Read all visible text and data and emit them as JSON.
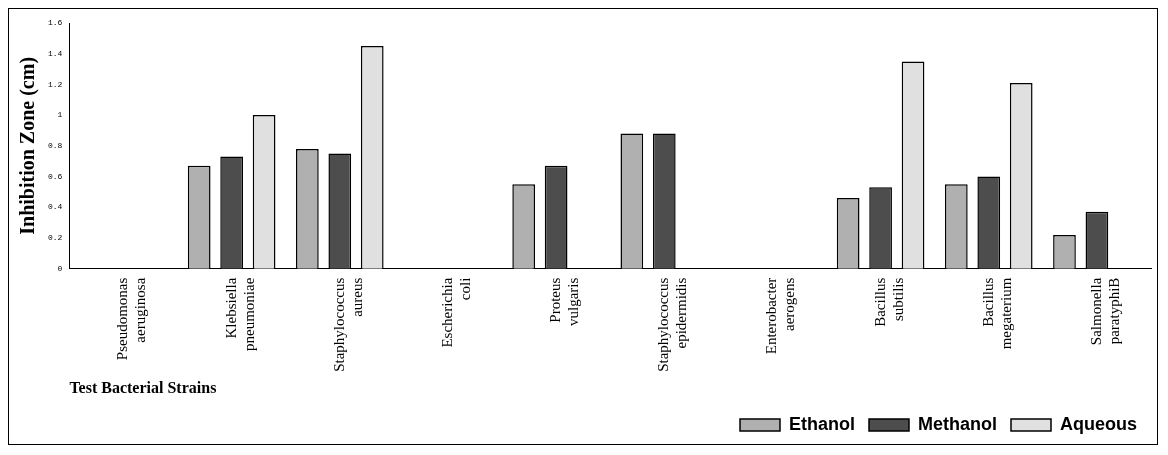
{
  "chart_data": {
    "type": "bar",
    "xlabel": "Test Bacterial Strains",
    "ylabel": "Inhibition Zone (cm)",
    "categories": [
      "Pseudomonas aeruginosa",
      "Klebsiella pneumoniae",
      "Staphylococcus aureus",
      "Escherichia coli",
      "Proteus vulgaris",
      "Staphylococcus epidermidis",
      "Enterobacter aerogens",
      "Bacillus subtilis",
      "Bacillus megaterium",
      "Salmonella paratyphiB"
    ],
    "series": [
      {
        "name": "Ethanol",
        "color": "#b0b0b0",
        "values": [
          0,
          0.67,
          0.78,
          0,
          0.55,
          0.88,
          0,
          0.46,
          0.55,
          0.22
        ]
      },
      {
        "name": "Methanol",
        "color": "#4d4d4d",
        "values": [
          0,
          0.73,
          0.75,
          0,
          0.67,
          0.88,
          0,
          0.53,
          0.6,
          0.37
        ]
      },
      {
        "name": "Aqueous",
        "color": "#e0e0e0",
        "values": [
          0,
          1.0,
          1.45,
          0,
          0,
          0,
          0,
          1.35,
          1.21,
          0
        ]
      }
    ],
    "ylim": [
      0,
      1.6
    ],
    "yticks": [
      0,
      0.2,
      0.4,
      0.6,
      0.8,
      1,
      1.2,
      1.4,
      1.6
    ],
    "grid": false,
    "legend": "bottom right"
  }
}
